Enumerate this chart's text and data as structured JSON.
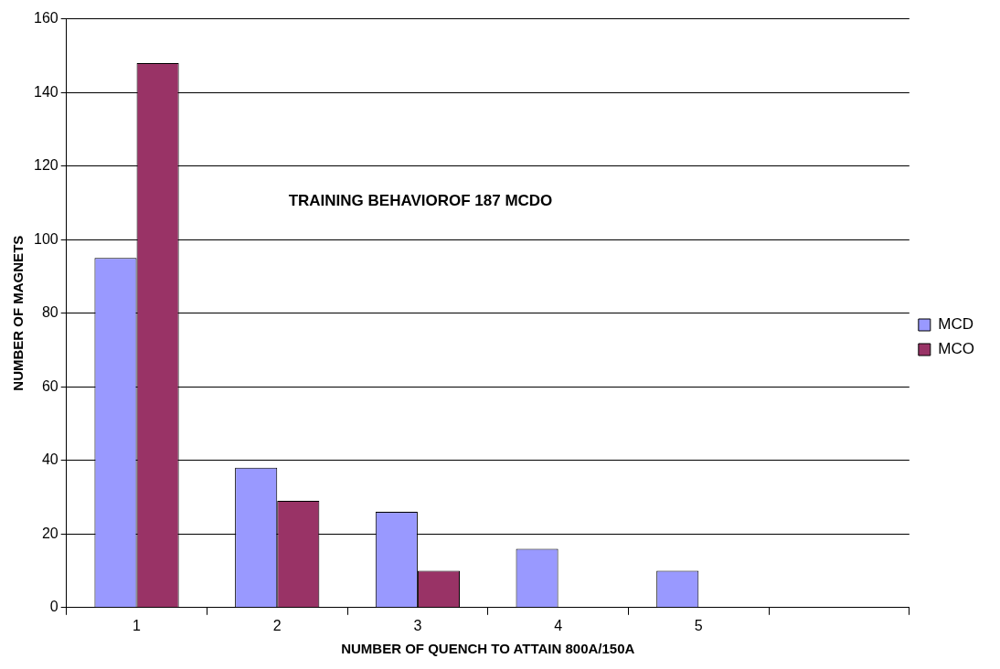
{
  "chart_data": {
    "type": "bar",
    "title": "TRAINING BEHAVIOROF 187 MCDO",
    "xlabel": "NUMBER OF QUENCH TO ATTAIN 800A/150A",
    "ylabel": "NUMBER OF MAGNETS",
    "categories": [
      "1",
      "2",
      "3",
      "4",
      "5",
      null
    ],
    "series": [
      {
        "name": "MCD",
        "color": "#9999ff",
        "values": [
          95,
          38,
          26,
          16,
          10,
          null
        ]
      },
      {
        "name": "MCO",
        "color": "#993366",
        "values": [
          148,
          29,
          10,
          null,
          null,
          null
        ]
      }
    ],
    "ylim": [
      0,
      160
    ],
    "yticks": [
      0,
      20,
      40,
      60,
      80,
      100,
      120,
      140,
      160
    ],
    "grid": "y",
    "legend": "right"
  }
}
